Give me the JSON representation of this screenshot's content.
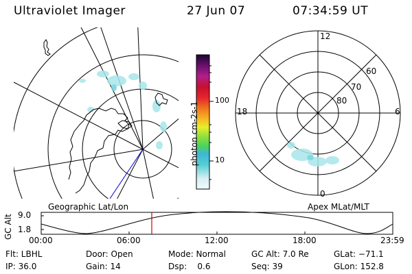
{
  "header": {
    "title": "Ultraviolet Imager",
    "date": "27 Jun 07",
    "time": "07:34:59 UT"
  },
  "colorbar": {
    "unit_label": "photon cm-2s-1",
    "ticks": [
      "100",
      "10"
    ]
  },
  "polar_plot": {
    "mlt_labels": [
      "12",
      "18",
      "6",
      "0"
    ],
    "lat_labels": [
      "60",
      "70",
      "80"
    ]
  },
  "geo_plot": {
    "label": "Geographic Lat/Lon"
  },
  "apex_plot": {
    "label": "Apex MLat/MLT"
  },
  "orbit_strip": {
    "ylabel": "GC Alt",
    "y_ticks": [
      "9.0",
      "1.8"
    ],
    "time_ticks": [
      "00:00",
      "06:00",
      "12:00",
      "18:00",
      "23:59"
    ],
    "marker_time": "07:34:59"
  },
  "info": {
    "flt": "Flt: LBHL",
    "door": "Door: Open",
    "mode": "Mode: Normal",
    "gc_alt": "GC Alt: 7.0 Re",
    "glat": "GLat: −71.1",
    "ip": "IP: 36.0",
    "gain": "Gain: 14",
    "dsp": "Dsp:    0.6",
    "seq": "Seq: 39",
    "glon": "GLon: 152.8"
  },
  "colors": {
    "aurora": "#a8e6ea",
    "marker": "#cc0000",
    "ground_track": "#0000cc"
  }
}
